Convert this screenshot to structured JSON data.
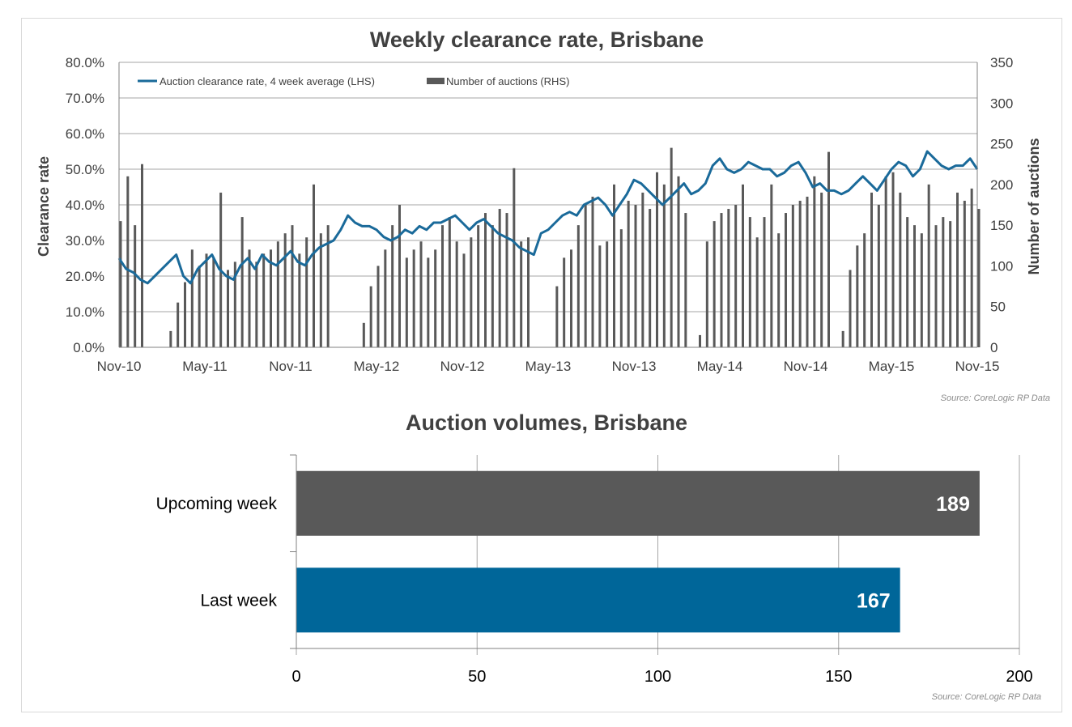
{
  "colors": {
    "line": "#1a6a9a",
    "thin_line": "#1f78b4",
    "weekly_bars": "#595959",
    "upcoming_bar": "#595959",
    "last_week_bar": "#006699",
    "grid": "#a6a6a6"
  },
  "chart_data": [
    {
      "type": "bar+line",
      "title": "Weekly clearance rate, Brisbane",
      "ylabel": "Clearance rate",
      "y2label": "Number of auctions",
      "ylim": [
        0,
        80
      ],
      "y2lim": [
        0,
        350
      ],
      "y_ticks": [
        "0.0%",
        "10.0%",
        "20.0%",
        "30.0%",
        "40.0%",
        "50.0%",
        "60.0%",
        "70.0%",
        "80.0%"
      ],
      "y2_ticks": [
        "0",
        "50",
        "100",
        "150",
        "200",
        "250",
        "300",
        "350"
      ],
      "x_ticks": [
        "Nov-10",
        "May-11",
        "Nov-11",
        "May-12",
        "Nov-12",
        "May-13",
        "Nov-13",
        "May-14",
        "Nov-14",
        "May-15",
        "Nov-15"
      ],
      "legend": [
        "Auction clearance rate, 4 week average (LHS)",
        "Number of auctions (RHS)"
      ],
      "legend_position": "top-left",
      "grid": true,
      "source": "Source: CoreLogic  RP Data",
      "series": [
        {
          "name": "Auction clearance rate, 4 week average (LHS)",
          "kind": "line",
          "axis": "left",
          "x_months": [
            0,
            0.5,
            1,
            1.5,
            2,
            2.5,
            3,
            3.5,
            4,
            4.5,
            5,
            5.5,
            6,
            6.5,
            7,
            7.5,
            8,
            8.5,
            9,
            9.5,
            10,
            10.5,
            11,
            11.5,
            12,
            12.5,
            13,
            13.5,
            14,
            14.5,
            15,
            15.5,
            16,
            16.5,
            17,
            17.5,
            18,
            18.5,
            19,
            19.5,
            20,
            20.5,
            21,
            21.5,
            22,
            22.5,
            23,
            23.5,
            24,
            24.5,
            25,
            25.5,
            26,
            26.5,
            27,
            27.5,
            28,
            28.5,
            29,
            29.5,
            30,
            30.5,
            31,
            31.5,
            32,
            32.5,
            33,
            33.5,
            34,
            34.5,
            35,
            35.5,
            36,
            36.5,
            37,
            37.5,
            38,
            38.5,
            39,
            39.5,
            40,
            40.5,
            41,
            41.5,
            42,
            42.5,
            43,
            43.5,
            44,
            44.5,
            45,
            45.5,
            46,
            46.5,
            47,
            47.5,
            48,
            48.5,
            49,
            49.5,
            50,
            50.5,
            51,
            51.5,
            52,
            52.5,
            53,
            53.5,
            54,
            54.5,
            55,
            55.5,
            56,
            56.5,
            57,
            57.5,
            58,
            58.5,
            59,
            59.5,
            60
          ],
          "values": [
            25,
            22,
            21,
            19,
            18,
            20,
            22,
            24,
            26,
            20,
            18,
            22,
            24,
            26,
            22,
            20,
            19,
            23,
            25,
            22,
            26,
            24,
            23,
            25,
            27,
            24,
            23,
            26,
            28,
            29,
            30,
            33,
            37,
            35,
            34,
            34,
            33,
            31,
            30,
            31,
            33,
            32,
            34,
            33,
            35,
            35,
            36,
            37,
            35,
            33,
            35,
            36,
            34,
            32,
            31,
            30,
            28,
            27,
            26,
            32,
            33,
            35,
            37,
            38,
            37,
            40,
            41,
            42,
            40,
            37,
            40,
            43,
            47,
            46,
            44,
            42,
            40,
            42,
            44,
            46,
            43,
            44,
            46,
            51,
            53,
            50,
            49,
            50,
            52,
            51,
            50,
            50,
            48,
            49,
            51,
            52,
            49,
            45,
            46,
            44,
            44,
            43,
            44,
            46,
            48,
            46,
            44,
            47,
            50,
            52,
            51,
            48,
            50,
            55,
            53,
            51,
            50,
            51,
            51,
            53,
            50
          ]
        },
        {
          "name": "Number of auctions (RHS)",
          "kind": "bar",
          "axis": "right",
          "x_months": [
            0,
            0.5,
            1,
            1.5,
            2,
            2.5,
            3,
            3.5,
            4,
            4.5,
            5,
            5.5,
            6,
            6.5,
            7,
            7.5,
            8,
            8.5,
            9,
            9.5,
            10,
            10.5,
            11,
            11.5,
            12,
            12.5,
            13,
            13.5,
            14,
            14.5,
            15,
            15.5,
            16,
            16.5,
            17,
            17.5,
            18,
            18.5,
            19,
            19.5,
            20,
            20.5,
            21,
            21.5,
            22,
            22.5,
            23,
            23.5,
            24,
            24.5,
            25,
            25.5,
            26,
            26.5,
            27,
            27.5,
            28,
            28.5,
            29,
            29.5,
            30,
            30.5,
            31,
            31.5,
            32,
            32.5,
            33,
            33.5,
            34,
            34.5,
            35,
            35.5,
            36,
            36.5,
            37,
            37.5,
            38,
            38.5,
            39,
            39.5,
            40,
            40.5,
            41,
            41.5,
            42,
            42.5,
            43,
            43.5,
            44,
            44.5,
            45,
            45.5,
            46,
            46.5,
            47,
            47.5,
            48,
            48.5,
            49,
            49.5,
            50,
            50.5,
            51,
            51.5,
            52,
            52.5,
            53,
            53.5,
            54,
            54.5,
            55,
            55.5,
            56,
            56.5,
            57,
            57.5,
            58,
            58.5,
            59,
            59.5,
            60
          ],
          "values": [
            155,
            210,
            150,
            225,
            0,
            0,
            0,
            20,
            55,
            80,
            120,
            100,
            115,
            110,
            190,
            95,
            105,
            160,
            120,
            105,
            115,
            120,
            130,
            140,
            150,
            115,
            135,
            200,
            140,
            150,
            0,
            0,
            0,
            0,
            30,
            75,
            100,
            120,
            150,
            175,
            110,
            120,
            130,
            110,
            120,
            150,
            160,
            130,
            115,
            135,
            150,
            165,
            150,
            170,
            165,
            220,
            130,
            135,
            0,
            0,
            0,
            75,
            110,
            120,
            150,
            175,
            185,
            125,
            130,
            200,
            145,
            180,
            175,
            190,
            170,
            215,
            200,
            245,
            210,
            165,
            0,
            15,
            130,
            155,
            165,
            170,
            175,
            200,
            160,
            135,
            160,
            200,
            140,
            165,
            175,
            180,
            185,
            210,
            190,
            240,
            0,
            20,
            95,
            125,
            140,
            190,
            175,
            210,
            215,
            190,
            160,
            150,
            140,
            200,
            150,
            160,
            155,
            190,
            180,
            195,
            170
          ]
        }
      ]
    },
    {
      "type": "bar",
      "orientation": "horizontal",
      "title": "Auction volumes, Brisbane",
      "categories": [
        "Upcoming week",
        "Last week"
      ],
      "values": [
        189,
        167
      ],
      "data_labels": [
        "189",
        "167"
      ],
      "xlim": [
        0,
        200
      ],
      "x_ticks": [
        "0",
        "50",
        "100",
        "150",
        "200"
      ],
      "grid": true,
      "source": "Source: CoreLogic  RP Data"
    }
  ]
}
